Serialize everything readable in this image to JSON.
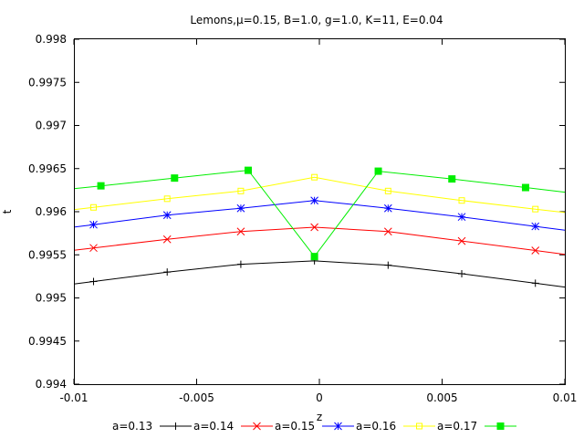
{
  "chart_data": {
    "type": "line",
    "title": "Lemons,μ=0.15, B=1.0, g=1.0, K=11, E=0.04",
    "xlabel": "z",
    "ylabel": "t",
    "xlim": [
      -0.01,
      0.01
    ],
    "ylim": [
      0.994,
      0.998
    ],
    "grid": false,
    "legend_position": "bottom",
    "x_ticks": [
      -0.01,
      -0.005,
      0,
      0.005,
      0.01
    ],
    "x_tick_labels": [
      "-0.01",
      "-0.005",
      "0",
      "0.005",
      "0.01"
    ],
    "y_ticks": [
      0.994,
      0.9945,
      0.995,
      0.9955,
      0.996,
      0.9965,
      0.997,
      0.9975,
      0.998
    ],
    "y_tick_labels": [
      "0.994",
      "0.9945",
      "0.995",
      "0.9955",
      "0.996",
      "0.9965",
      "0.997",
      "0.9975",
      "0.998"
    ],
    "series": [
      {
        "name": "a=0.13",
        "color": "#000000",
        "marker": "plus",
        "x": [
          -0.0092,
          -0.0062,
          -0.0032,
          -0.0002,
          0.0028,
          0.0058,
          0.0088
        ],
        "y": [
          0.99519,
          0.9953,
          0.99539,
          0.99543,
          0.99538,
          0.99528,
          0.99517
        ]
      },
      {
        "name": "a=0.14",
        "color": "#ff0000",
        "marker": "x",
        "x": [
          -0.0092,
          -0.0062,
          -0.0032,
          -0.0002,
          0.0028,
          0.0058,
          0.0088
        ],
        "y": [
          0.99558,
          0.99568,
          0.99577,
          0.99582,
          0.99577,
          0.99566,
          0.99555
        ]
      },
      {
        "name": "a=0.15",
        "color": "#0000ff",
        "marker": "star",
        "x": [
          -0.0092,
          -0.0062,
          -0.0032,
          -0.0002,
          0.0028,
          0.0058,
          0.0088
        ],
        "y": [
          0.99585,
          0.99596,
          0.99604,
          0.99613,
          0.99604,
          0.99594,
          0.99583
        ]
      },
      {
        "name": "a=0.16",
        "color": "#ffff00",
        "marker": "open-square",
        "x": [
          -0.0092,
          -0.0062,
          -0.0032,
          -0.0002,
          0.0028,
          0.0058,
          0.0088
        ],
        "y": [
          0.99605,
          0.99615,
          0.99624,
          0.9964,
          0.99624,
          0.99613,
          0.99603
        ]
      },
      {
        "name": "a=0.17",
        "color": "#00ee00",
        "marker": "filled-square",
        "x": [
          -0.0089,
          -0.0059,
          -0.0029,
          -0.0002,
          0.0024,
          0.0054,
          0.0084
        ],
        "y": [
          0.9963,
          0.99639,
          0.99648,
          0.99548,
          0.99647,
          0.99638,
          0.99628
        ]
      }
    ]
  }
}
